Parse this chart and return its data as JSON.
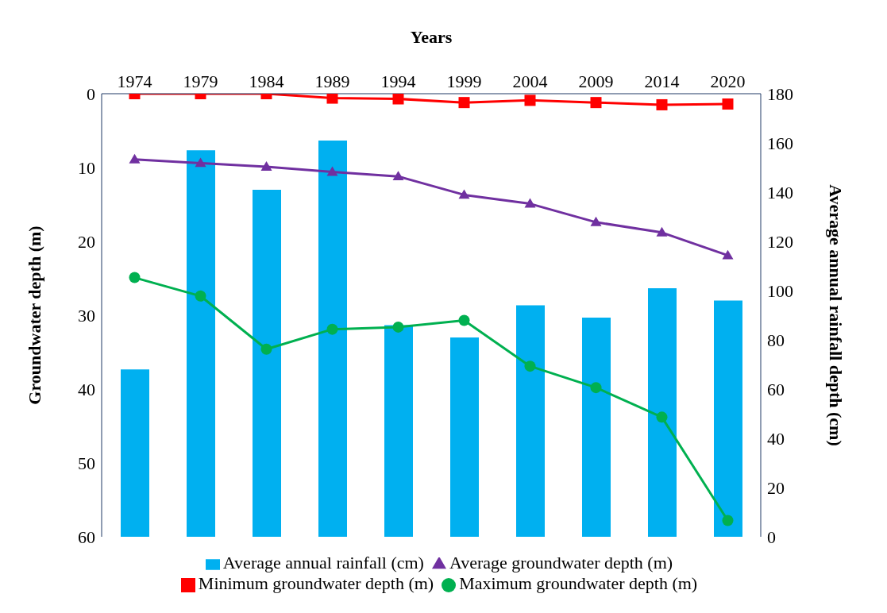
{
  "chart_data": {
    "type": "line",
    "xlabel": "Years",
    "ylabel": "Groundwater depth (m)",
    "y2label": "Average annual rainfall depth (cm)",
    "categories": [
      "1974",
      "1979",
      "1984",
      "1989",
      "1994",
      "1999",
      "2004",
      "2009",
      "2014",
      "2020"
    ],
    "series": [
      {
        "name": "Average annual rainfall (cm)",
        "type": "bar",
        "axis": "y2",
        "color": "#00b0f0",
        "values": [
          68,
          157,
          141,
          161,
          86,
          81,
          94,
          89,
          101,
          96
        ]
      },
      {
        "name": "Average groundwater depth (m)",
        "marker": "triangle",
        "color": "#7030a0",
        "values": [
          8.9,
          9.4,
          9.9,
          10.6,
          11.2,
          13.7,
          14.9,
          17.4,
          18.8,
          21.9
        ]
      },
      {
        "name": "Minimum groundwater depth (m)",
        "marker": "square",
        "color": "#ff0000",
        "values": [
          0,
          0,
          0,
          0.6,
          0.7,
          1.2,
          0.9,
          1.2,
          1.5,
          1.4
        ]
      },
      {
        "name": "Maximum groundwater depth (m)",
        "marker": "circle",
        "color": "#00b050",
        "values": [
          24.9,
          27.4,
          34.6,
          31.9,
          31.6,
          30.7,
          36.9,
          39.8,
          43.8,
          57.8
        ]
      }
    ],
    "ylim": [
      60,
      0
    ],
    "yticks": [
      0,
      10,
      20,
      30,
      40,
      50,
      60
    ],
    "y2lim": [
      0,
      180
    ],
    "y2ticks": [
      0,
      20,
      40,
      60,
      80,
      100,
      120,
      140,
      160,
      180
    ],
    "grid": false,
    "legend": "bottom"
  }
}
